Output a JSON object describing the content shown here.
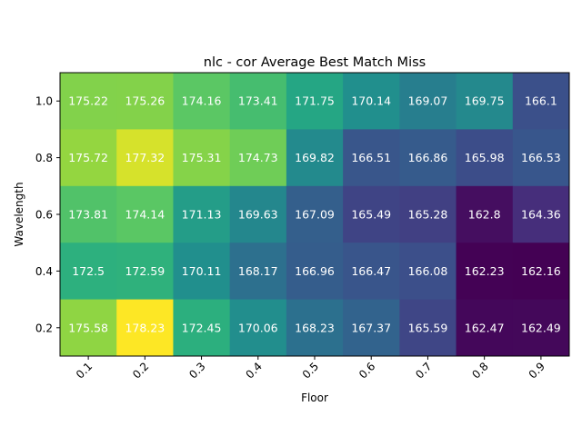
{
  "chart_data": {
    "type": "heatmap",
    "title": "nlc - cor Average Best Match Miss",
    "xlabel": "Floor",
    "ylabel": "Wavelength",
    "x_categories": [
      "0.1",
      "0.2",
      "0.3",
      "0.4",
      "0.5",
      "0.6",
      "0.7",
      "0.8",
      "0.9"
    ],
    "y_categories": [
      "1.0",
      "0.8",
      "0.6",
      "0.4",
      "0.2"
    ],
    "values": [
      [
        175.22,
        175.26,
        174.16,
        173.41,
        171.75,
        170.14,
        169.07,
        169.75,
        166.1
      ],
      [
        175.72,
        177.32,
        175.31,
        174.73,
        169.82,
        166.51,
        166.86,
        165.98,
        166.53
      ],
      [
        173.81,
        174.14,
        171.13,
        169.63,
        167.09,
        165.49,
        165.28,
        162.8,
        164.36
      ],
      [
        172.5,
        172.59,
        170.11,
        168.17,
        166.96,
        166.47,
        166.08,
        162.23,
        162.16
      ],
      [
        175.58,
        178.23,
        172.45,
        170.06,
        168.23,
        167.37,
        165.59,
        162.47,
        162.49
      ]
    ],
    "colormap": "viridis",
    "grid": false,
    "cell_label_color": "#ffffff"
  }
}
